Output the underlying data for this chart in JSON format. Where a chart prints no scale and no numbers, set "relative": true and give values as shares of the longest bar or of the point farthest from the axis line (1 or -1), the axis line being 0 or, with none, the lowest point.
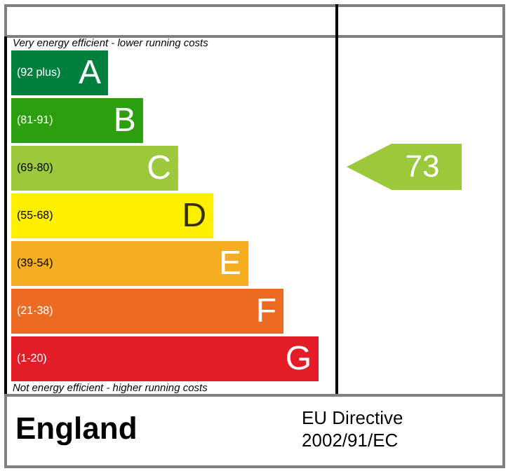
{
  "chart_data": {
    "type": "bar",
    "orientation": "horizontal",
    "relative": true,
    "categories": [
      "A",
      "B",
      "C",
      "D",
      "E",
      "F",
      "G"
    ],
    "values": [
      0.315,
      0.429,
      0.543,
      0.658,
      0.772,
      0.886,
      1
    ],
    "colors": [
      "#007f3d",
      "#2c9f0e",
      "#9bc93b",
      "#fff000",
      "#f5ae1f",
      "#ec6b23",
      "#e21d26"
    ],
    "annotations": [
      "Very energy efficient - lower running costs",
      "Not energy efficient - higher running costs",
      "England",
      "EU Directive\n2002/91/EC",
      "73",
      "(92 plus)",
      "(81-91)",
      "(69-80)",
      "(55-68)",
      "(39-54)",
      "(21-38)",
      "(1-20)"
    ]
  }
}
